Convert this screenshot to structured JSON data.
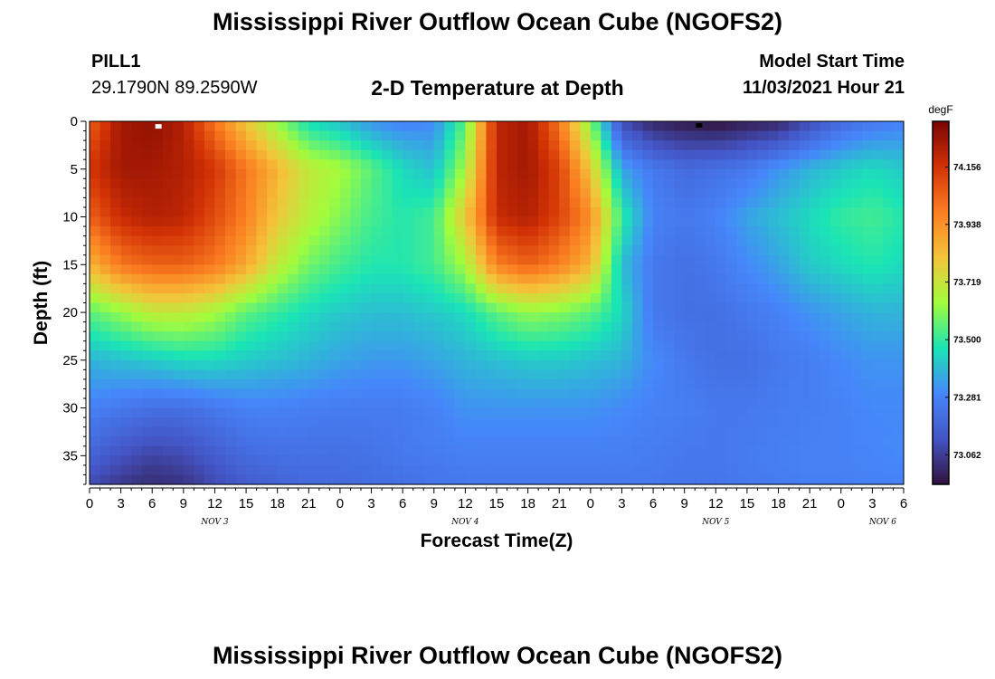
{
  "header": {
    "title": "Mississippi River Outflow Ocean Cube (NGOFS2)",
    "station": "PILL1",
    "coordinates": "29.1790N  89.2590W",
    "subtitle": "2-D Temperature at Depth",
    "model_start_label": "Model Start Time",
    "model_start_value": "11/03/2021 Hour 21"
  },
  "footer": {
    "title": "Mississippi River Outflow Ocean Cube (NGOFS2)"
  },
  "chart_data": {
    "type": "heatmap",
    "xlabel": "Forecast Time(Z)",
    "ylabel": "Depth (ft)",
    "x_ticks": [
      "0",
      "3",
      "6",
      "9",
      "12",
      "15",
      "18",
      "21",
      "0",
      "3",
      "6",
      "9",
      "12",
      "15",
      "18",
      "21",
      "0",
      "3",
      "6",
      "9",
      "12",
      "15",
      "18",
      "21",
      "0",
      "3",
      "6"
    ],
    "x_range_hours": [
      0,
      78
    ],
    "day_labels": [
      {
        "label": "NOV 3",
        "hour": 12
      },
      {
        "label": "NOV 4",
        "hour": 36
      },
      {
        "label": "NOV 5",
        "hour": 60
      },
      {
        "label": "NOV 6",
        "hour": 76
      }
    ],
    "y_ticks": [
      0,
      5,
      10,
      15,
      20,
      25,
      30,
      35
    ],
    "ylim": [
      0,
      38
    ],
    "y_inverted": true,
    "colorbar": {
      "unit": "degF",
      "ticks": [
        74.156,
        73.938,
        73.719,
        73.5,
        73.281,
        73.062
      ],
      "range": [
        72.95,
        74.33
      ],
      "colors": [
        "#30123b",
        "#4454c4",
        "#4686fb",
        "#1ae4b6",
        "#a2fc3c",
        "#f4c43a",
        "#fb7e21",
        "#d23105",
        "#7a0403"
      ]
    },
    "z_anchor_hours": [
      0,
      3,
      6,
      9,
      12,
      15,
      18,
      21,
      24,
      27,
      30,
      33,
      36,
      39,
      42,
      45,
      48,
      51,
      54,
      57,
      60,
      63,
      66,
      69,
      72,
      75,
      78
    ],
    "z_anchor_depths_ft": [
      0,
      5,
      10,
      15,
      20,
      25,
      30,
      35,
      38
    ],
    "z_values_degF": [
      [
        74.05,
        74.25,
        74.28,
        74.22,
        74.0,
        73.8,
        73.62,
        73.45,
        73.4,
        73.32,
        73.28,
        73.3,
        73.55,
        74.2,
        74.25,
        74.0,
        73.6,
        73.1,
        73.0,
        72.97,
        72.95,
        72.98,
        73.0,
        73.1,
        73.2,
        73.25,
        73.28
      ],
      [
        74.15,
        74.25,
        74.25,
        74.22,
        74.15,
        74.0,
        73.85,
        73.7,
        73.65,
        73.55,
        73.45,
        73.4,
        73.65,
        74.2,
        74.25,
        74.12,
        73.8,
        73.35,
        73.25,
        73.2,
        73.22,
        73.25,
        73.32,
        73.38,
        73.42,
        73.45,
        73.42
      ],
      [
        74.05,
        74.18,
        74.22,
        74.2,
        74.1,
        73.98,
        73.8,
        73.68,
        73.6,
        73.52,
        73.48,
        73.52,
        73.8,
        74.18,
        74.22,
        74.12,
        73.95,
        73.5,
        73.28,
        73.25,
        73.28,
        73.35,
        73.4,
        73.45,
        73.5,
        73.52,
        73.48
      ],
      [
        73.85,
        74.0,
        74.05,
        74.05,
        74.0,
        73.88,
        73.7,
        73.58,
        73.52,
        73.48,
        73.48,
        73.52,
        73.65,
        73.98,
        74.05,
        73.98,
        73.85,
        73.4,
        73.25,
        73.22,
        73.25,
        73.3,
        73.35,
        73.42,
        73.45,
        73.48,
        73.45
      ],
      [
        73.55,
        73.62,
        73.7,
        73.7,
        73.65,
        73.55,
        73.5,
        73.45,
        73.42,
        73.4,
        73.4,
        73.42,
        73.45,
        73.55,
        73.62,
        73.6,
        73.55,
        73.45,
        73.25,
        73.22,
        73.22,
        73.25,
        73.28,
        73.32,
        73.35,
        73.38,
        73.38
      ],
      [
        73.38,
        73.4,
        73.42,
        73.45,
        73.45,
        73.42,
        73.4,
        73.38,
        73.35,
        73.33,
        73.33,
        73.35,
        73.38,
        73.4,
        73.42,
        73.42,
        73.4,
        73.38,
        73.3,
        73.25,
        73.22,
        73.22,
        73.25,
        73.27,
        73.3,
        73.32,
        73.32
      ],
      [
        73.28,
        73.25,
        73.22,
        73.22,
        73.25,
        73.28,
        73.28,
        73.27,
        73.26,
        73.26,
        73.26,
        73.28,
        73.32,
        73.32,
        73.32,
        73.32,
        73.32,
        73.3,
        73.28,
        73.27,
        73.25,
        73.25,
        73.26,
        73.27,
        73.28,
        73.3,
        73.3
      ],
      [
        73.18,
        73.12,
        73.08,
        73.1,
        73.15,
        73.2,
        73.22,
        73.22,
        73.22,
        73.23,
        73.25,
        73.26,
        73.27,
        73.27,
        73.27,
        73.27,
        73.27,
        73.27,
        73.26,
        73.25,
        73.25,
        73.26,
        73.27,
        73.28,
        73.28,
        73.29,
        73.3
      ],
      [
        73.1,
        73.05,
        73.02,
        73.04,
        73.1,
        73.15,
        73.18,
        73.2,
        73.2,
        73.21,
        73.22,
        73.24,
        73.25,
        73.25,
        73.25,
        73.25,
        73.25,
        73.25,
        73.25,
        73.24,
        73.24,
        73.25,
        73.26,
        73.27,
        73.27,
        73.28,
        73.28
      ]
    ],
    "markers": [
      {
        "hour": 6.6,
        "depth": 0.2,
        "color": "#ffffff"
      },
      {
        "hour": 58.4,
        "depth": 0.1,
        "color": "#000000"
      }
    ]
  }
}
